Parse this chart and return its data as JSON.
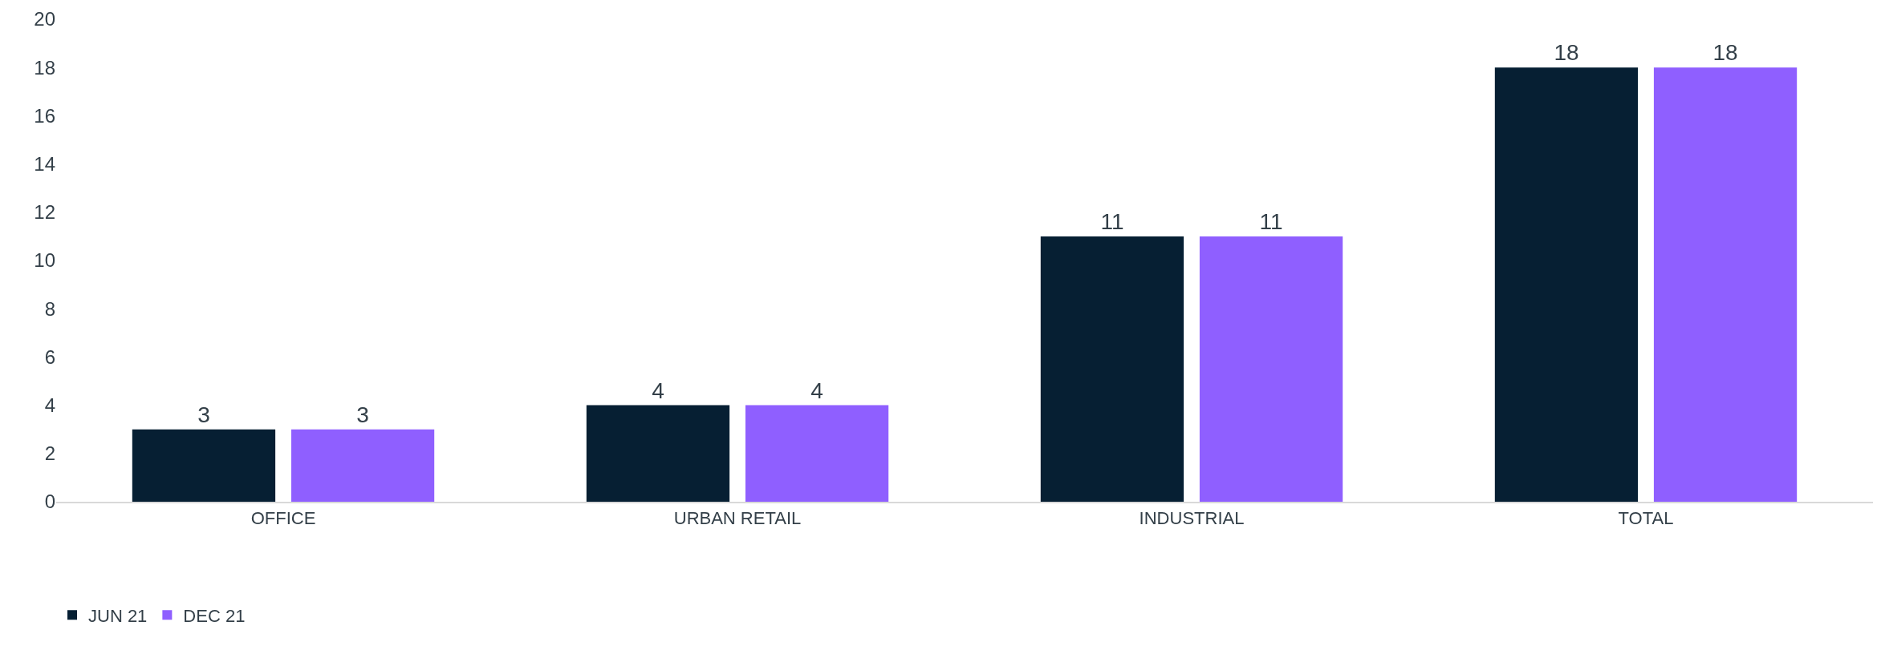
{
  "chart_data": {
    "type": "bar",
    "categories": [
      "OFFICE",
      "URBAN RETAIL",
      "INDUSTRIAL",
      "TOTAL"
    ],
    "series": [
      {
        "name": "JUN 21",
        "color": "#061f33",
        "values": [
          3,
          4,
          11,
          18
        ]
      },
      {
        "name": "DEC 21",
        "color": "#8f5fff",
        "values": [
          3,
          4,
          11,
          18
        ]
      }
    ],
    "ylim": [
      0,
      20
    ],
    "yticks": [
      0,
      2,
      4,
      6,
      8,
      10,
      12,
      14,
      16,
      18,
      20
    ],
    "grid": false,
    "legend": "bottom left",
    "data_labels": true
  }
}
